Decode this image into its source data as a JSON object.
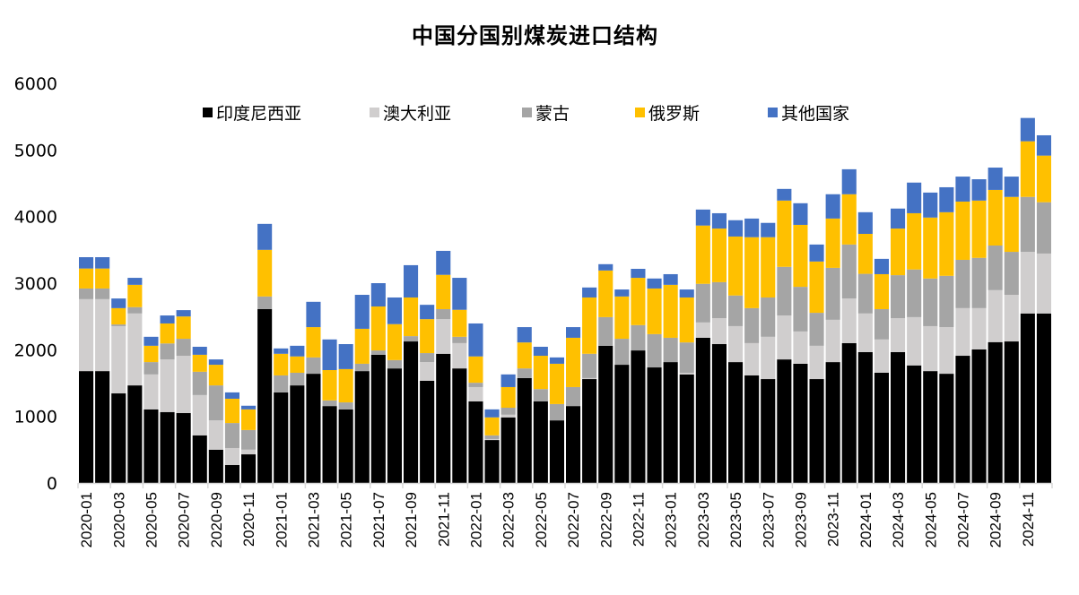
{
  "chart_data": {
    "type": "bar",
    "stacked": true,
    "title": "中国分国别煤炭进口结构",
    "xlabel": "",
    "ylabel": "",
    "ylim": [
      0,
      6000
    ],
    "yticks": [
      0,
      1000,
      2000,
      3000,
      4000,
      5000,
      6000
    ],
    "grid": false,
    "legend_position": "top",
    "categories": [
      "2020-01",
      "2020-02",
      "2020-03",
      "2020-04",
      "2020-05",
      "2020-06",
      "2020-07",
      "2020-08",
      "2020-09",
      "2020-10",
      "2020-11",
      "2020-12",
      "2021-01",
      "2021-02",
      "2021-03",
      "2021-04",
      "2021-05",
      "2021-06",
      "2021-07",
      "2021-08",
      "2021-09",
      "2021-10",
      "2021-11",
      "2021-12",
      "2022-01",
      "2022-02",
      "2022-03",
      "2022-04",
      "2022-05",
      "2022-06",
      "2022-07",
      "2022-08",
      "2022-09",
      "2022-10",
      "2022-11",
      "2022-12",
      "2023-01",
      "2023-02",
      "2023-03",
      "2023-04",
      "2023-05",
      "2023-06",
      "2023-07",
      "2023-08",
      "2023-09",
      "2023-10",
      "2023-11",
      "2023-12",
      "2024-01",
      "2024-02",
      "2024-03",
      "2024-04",
      "2024-05",
      "2024-06",
      "2024-07",
      "2024-08",
      "2024-09",
      "2024-10",
      "2024-11",
      "2024-12"
    ],
    "tick_labels": [
      "2020-01",
      "2020-03",
      "2020-05",
      "2020-07",
      "2020-09",
      "2020-11",
      "2021-01",
      "2021-03",
      "2021-05",
      "2021-07",
      "2021-09",
      "2021-11",
      "2022-01",
      "2022-03",
      "2022-05",
      "2022-07",
      "2022-09",
      "2022-11",
      "2023-01",
      "2023-03",
      "2023-05",
      "2023-07",
      "2023-09",
      "2023-11",
      "2024-01",
      "2024-03",
      "2024-05",
      "2024-07",
      "2024-09",
      "2024-11"
    ],
    "series": [
      {
        "name": "印度尼西亚",
        "color": "#000000",
        "values": [
          1680,
          1680,
          1345,
          1465,
          1105,
          1065,
          1050,
          715,
          500,
          270,
          430,
          2610,
          1360,
          1465,
          1640,
          1155,
          1105,
          1680,
          1925,
          1720,
          2125,
          1535,
          1940,
          1720,
          1225,
          645,
          985,
          1575,
          1225,
          940,
          1155,
          1560,
          2060,
          1775,
          1990,
          1735,
          1815,
          1630,
          2180,
          2085,
          1815,
          1615,
          1560,
          1855,
          1790,
          1560,
          1815,
          2100,
          1965,
          1655,
          1965,
          1765,
          1680,
          1640,
          1910,
          2005,
          2115,
          2125,
          2545,
          2545
        ]
      },
      {
        "name": "澳大利亚",
        "color": "#d0cece",
        "values": [
          1080,
          1080,
          1010,
          1080,
          525,
          790,
          860,
          605,
          440,
          255,
          70,
          0,
          0,
          0,
          0,
          0,
          0,
          0,
          0,
          0,
          0,
          280,
          520,
          380,
          215,
          15,
          40,
          0,
          0,
          0,
          0,
          15,
          0,
          0,
          0,
          0,
          0,
          25,
          230,
          390,
          540,
          485,
          635,
          660,
          485,
          500,
          635,
          670,
          580,
          500,
          510,
          725,
          675,
          700,
          715,
          620,
          780,
          700,
          925,
          900
        ]
      },
      {
        "name": "蒙古",
        "color": "#a5a5a5",
        "values": [
          160,
          160,
          25,
          95,
          185,
          240,
          255,
          350,
          525,
          375,
          295,
          190,
          255,
          190,
          245,
          85,
          105,
          110,
          65,
          125,
          80,
          135,
          150,
          95,
          65,
          55,
          105,
          145,
          185,
          245,
          285,
          365,
          430,
          390,
          380,
          500,
          365,
          455,
          580,
          540,
          460,
          525,
          590,
          730,
          670,
          495,
          780,
          810,
          595,
          455,
          645,
          715,
          715,
          770,
          725,
          755,
          670,
          645,
          825,
          770
        ]
      },
      {
        "name": "俄罗斯",
        "color": "#ffc000",
        "values": [
          300,
          300,
          245,
          335,
          245,
          300,
          335,
          255,
          310,
          365,
          310,
          700,
          325,
          245,
          455,
          455,
          500,
          525,
          660,
          540,
          580,
          510,
          515,
          405,
          395,
          270,
          310,
          390,
          500,
          605,
          740,
          845,
          700,
          635,
          710,
          685,
          795,
          675,
          875,
          805,
          885,
          1065,
          905,
          995,
          930,
          770,
          740,
          755,
          600,
          525,
          700,
          845,
          915,
          955,
          875,
          860,
          835,
          825,
          835,
          700
        ]
      },
      {
        "name": "其他国家",
        "color": "#4472c4",
        "values": [
          170,
          170,
          145,
          105,
          135,
          120,
          95,
          120,
          80,
          95,
          55,
          390,
          80,
          160,
          380,
          460,
          375,
          510,
          350,
          400,
          485,
          215,
          360,
          480,
          495,
          120,
          190,
          230,
          135,
          95,
          160,
          150,
          95,
          105,
          135,
          150,
          160,
          120,
          240,
          230,
          245,
          280,
          215,
          175,
          325,
          255,
          365,
          375,
          325,
          230,
          300,
          460,
          375,
          375,
          375,
          320,
          335,
          305,
          350,
          305
        ]
      }
    ]
  }
}
